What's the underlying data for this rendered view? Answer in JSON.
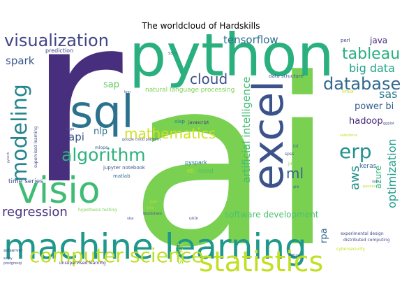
{
  "title": "The worldcloud of Hardskills",
  "words": [
    {
      "text": "r",
      "color": "#472f7d"
    },
    {
      "text": "ai",
      "color": "#7ad151"
    },
    {
      "text": "python",
      "color": "#2ab07f"
    },
    {
      "text": "sql",
      "color": "#2c728e"
    },
    {
      "text": "machine learning",
      "color": "#1f988b"
    },
    {
      "text": "visio",
      "color": "#3fbc73"
    },
    {
      "text": "excel",
      "color": "#3b528b"
    },
    {
      "text": "statistics",
      "color": "#c2df23"
    },
    {
      "text": "computer science",
      "color": "#bddf26"
    },
    {
      "text": "visualization",
      "color": "#414487"
    },
    {
      "text": "modeling",
      "color": "#25858e"
    },
    {
      "text": "mathematics",
      "color": "#cde11d"
    },
    {
      "text": "algorithm",
      "color": "#2db27d"
    },
    {
      "text": "erp",
      "color": "#21918c"
    },
    {
      "text": "database",
      "color": "#31688e"
    },
    {
      "text": "tableau",
      "color": "#29af7f"
    },
    {
      "text": "cloud",
      "color": "#3b528b"
    },
    {
      "text": "ml",
      "color": "#33638d"
    },
    {
      "text": "big data",
      "color": "#20a386"
    },
    {
      "text": "sas",
      "color": "#287d8e"
    },
    {
      "text": "spark",
      "color": "#38588c"
    },
    {
      "text": "regression",
      "color": "#46327e"
    },
    {
      "text": "tensorflow",
      "color": "#2e6e8e"
    },
    {
      "text": "aws",
      "color": "#21918c"
    },
    {
      "text": "optimization",
      "color": "#1e9b8a"
    },
    {
      "text": "power bi",
      "color": "#355f8d"
    },
    {
      "text": "hadoop",
      "color": "#482677"
    },
    {
      "text": "api",
      "color": "#3b528b"
    },
    {
      "text": "nlp",
      "color": "#2c728e"
    },
    {
      "text": "artificial intelligence",
      "color": "#40bd72"
    },
    {
      "text": "java",
      "color": "#482878"
    },
    {
      "text": "sap",
      "color": "#5ec962"
    },
    {
      "text": "azure",
      "color": "#2fb47c"
    },
    {
      "text": "scikit",
      "color": "#a8db34"
    },
    {
      "text": "software development",
      "color": "#4ac16d"
    },
    {
      "text": "rpa",
      "color": "#31688e"
    },
    {
      "text": "keras",
      "color": "#33638d"
    },
    {
      "text": "time series",
      "color": "#3e4a89"
    },
    {
      "text": "natural language processing",
      "color": "#7ad151"
    },
    {
      "text": "prediction",
      "color": "#414487"
    },
    {
      "text": "ssrs",
      "color": "#287d8e"
    },
    {
      "text": "data structure",
      "color": "#3b528b"
    },
    {
      "text": "perl",
      "color": "#3e4989"
    },
    {
      "text": "jupyter notebook",
      "color": "#3b528b"
    },
    {
      "text": "matlab",
      "color": "#31688e"
    },
    {
      "text": "pyspark",
      "color": "#2c728e"
    },
    {
      "text": "etl",
      "color": "#c0df25"
    },
    {
      "text": "nosql",
      "color": "#3fbc73"
    },
    {
      "text": "hypothesis testing",
      "color": "#7ad151"
    },
    {
      "text": "olap",
      "color": "#2a788e"
    },
    {
      "text": "javascript",
      "color": "#46327e"
    },
    {
      "text": "google cloud platform",
      "color": "#3e4a89"
    },
    {
      "text": "mlops",
      "color": "#355f8d"
    },
    {
      "text": "supervised learning",
      "color": "#3e4a89"
    },
    {
      "text": "linux",
      "color": "#bddf26"
    },
    {
      "text": "iot",
      "color": "#2c728e"
    },
    {
      "text": "spss",
      "color": "#3b528b"
    },
    {
      "text": "jira",
      "color": "#7ad151"
    },
    {
      "text": "qlik",
      "color": "#31688e"
    },
    {
      "text": "julia",
      "color": "#b5de2b"
    },
    {
      "text": "blockchain",
      "color": "#3e4a89"
    },
    {
      "text": "vba",
      "color": "#3e4a89"
    },
    {
      "text": "unix",
      "color": "#3e4a89"
    },
    {
      "text": "experimental design",
      "color": "#3e4a89"
    },
    {
      "text": "distributed computing",
      "color": "#3e4a89"
    },
    {
      "text": "rdbms",
      "color": "#3e4a89"
    },
    {
      "text": "cybersecurity",
      "color": "#c2df23"
    },
    {
      "text": "unsupervised learning",
      "color": "#46327e"
    },
    {
      "text": "sqlserver",
      "color": "#3e4a89"
    },
    {
      "text": "scipy",
      "color": "#3e4a89"
    },
    {
      "text": "postgresql",
      "color": "#3e4a89"
    },
    {
      "text": "ggplot",
      "color": "#3e4a89"
    },
    {
      "text": "salesforce",
      "color": "#c2df23"
    },
    {
      "text": "pandas",
      "color": "#b5de2b"
    },
    {
      "text": "knn",
      "color": "#3e4a89"
    },
    {
      "text": "fpga",
      "color": "#3e4a89"
    },
    {
      "text": "json",
      "color": "#c2df23"
    },
    {
      "text": "pytorch",
      "color": "#3e4a89"
    },
    {
      "text": "dplyr",
      "color": "#3e4a89"
    }
  ]
}
